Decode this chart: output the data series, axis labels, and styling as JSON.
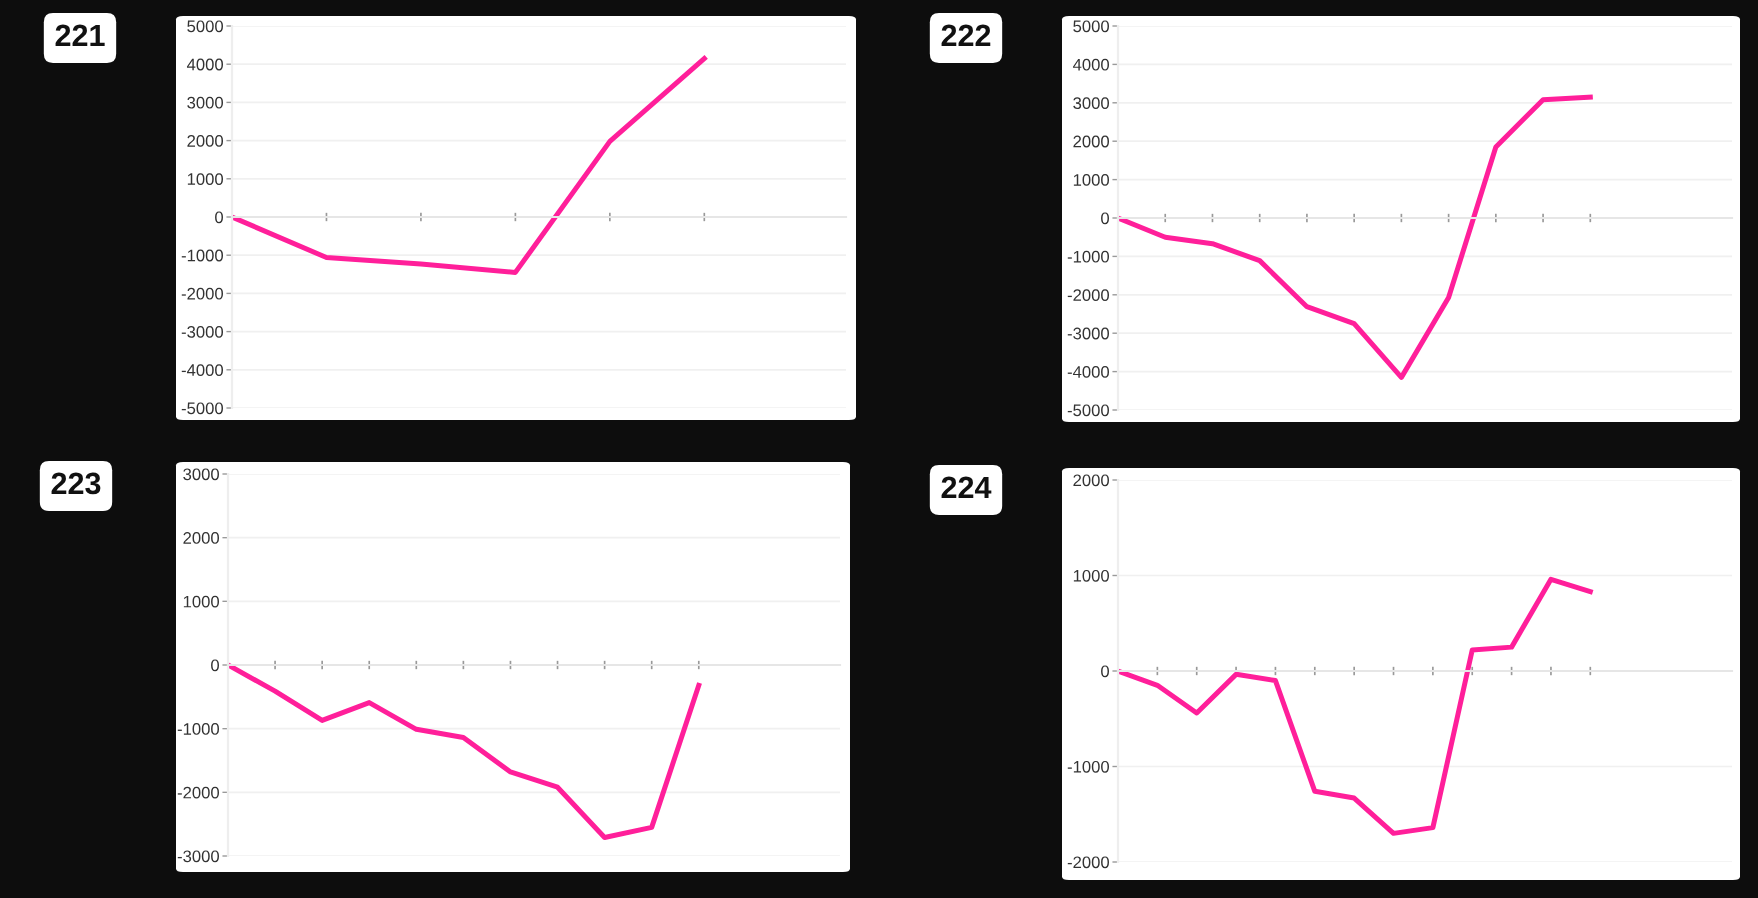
{
  "chart_data": [
    {
      "type": "line",
      "title": "221",
      "color": "#ff1f9a",
      "grid": "y",
      "tick_labels": "y",
      "ylim": [
        -5000,
        5000
      ],
      "yticks": [
        -5000,
        -4000,
        -3000,
        -2000,
        -1000,
        0,
        1000,
        2000,
        3000,
        4000,
        5000
      ],
      "categories": [
        null,
        null,
        null,
        null,
        null,
        null
      ],
      "values": [
        0,
        -1060,
        -1230,
        -1450,
        1980,
        4150
      ]
    },
    {
      "type": "line",
      "title": "222",
      "color": "#ff1f9a",
      "grid": "y",
      "tick_labels": "y",
      "ylim": [
        -5000,
        5000
      ],
      "yticks": [
        -5000,
        -4000,
        -3000,
        -2000,
        -1000,
        0,
        1000,
        2000,
        3000,
        4000,
        5000
      ],
      "categories": [
        null,
        null,
        null,
        null,
        null,
        null,
        null,
        null,
        null,
        null,
        null
      ],
      "values": [
        0,
        -500,
        -670,
        -1110,
        -2310,
        -2750,
        -4150,
        -2070,
        1850,
        3080,
        3150
      ]
    },
    {
      "type": "line",
      "title": "223",
      "color": "#ff1f9a",
      "grid": "y",
      "tick_labels": "y",
      "ylim": [
        -3000,
        3000
      ],
      "yticks": [
        -3000,
        -2000,
        -1000,
        0,
        1000,
        2000,
        3000
      ],
      "categories": [
        null,
        null,
        null,
        null,
        null,
        null,
        null,
        null,
        null,
        null,
        null
      ],
      "values": [
        0,
        -410,
        -870,
        -590,
        -1010,
        -1140,
        -1680,
        -1920,
        -2710,
        -2550,
        -320
      ]
    },
    {
      "type": "line",
      "title": "224",
      "color": "#ff1f9a",
      "grid": "y",
      "tick_labels": "y",
      "ylim": [
        -2000,
        2000
      ],
      "yticks": [
        -2000,
        -1000,
        0,
        1000,
        2000
      ],
      "categories": [
        null,
        null,
        null,
        null,
        null,
        null,
        null,
        null,
        null,
        null,
        null,
        null,
        null
      ],
      "values": [
        0,
        -150,
        -440,
        -35,
        -100,
        -1260,
        -1330,
        -1700,
        -1640,
        220,
        250,
        960,
        830
      ]
    }
  ]
}
